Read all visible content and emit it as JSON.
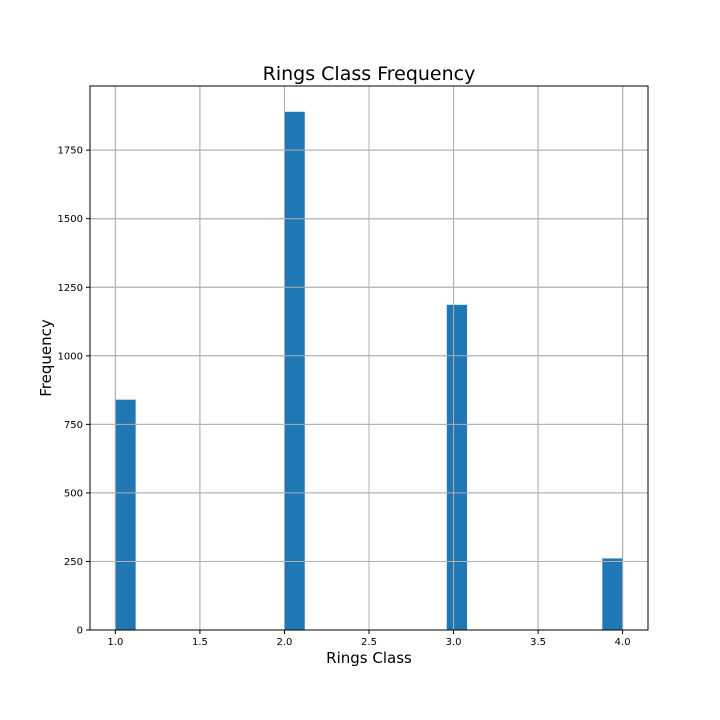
{
  "chart_data": {
    "type": "bar",
    "title": "Rings Class Frequency",
    "xlabel": "Rings Class",
    "ylabel": "Frequency",
    "x": [
      1.0,
      2.0,
      3.0,
      4.0
    ],
    "values": [
      840,
      1890,
      1186,
      261
    ],
    "bar_bins": [
      [
        1.0,
        1.12
      ],
      [
        2.0,
        2.12
      ],
      [
        2.96,
        3.08
      ],
      [
        3.88,
        4.0
      ]
    ],
    "xlim": [
      0.85,
      4.15
    ],
    "ylim": [
      0,
      1984
    ],
    "xticks": [
      "1.0",
      "1.5",
      "2.0",
      "2.5",
      "3.0",
      "3.5",
      "4.0"
    ],
    "xtick_values": [
      1.0,
      1.5,
      2.0,
      2.5,
      3.0,
      3.5,
      4.0
    ],
    "yticks": [
      "0",
      "250",
      "500",
      "750",
      "1000",
      "1250",
      "1500",
      "1750"
    ],
    "ytick_values": [
      0,
      250,
      500,
      750,
      1000,
      1250,
      1500,
      1750
    ],
    "grid": true,
    "bar_color": "#1f77b4",
    "grid_color": "#b0b0b0"
  }
}
